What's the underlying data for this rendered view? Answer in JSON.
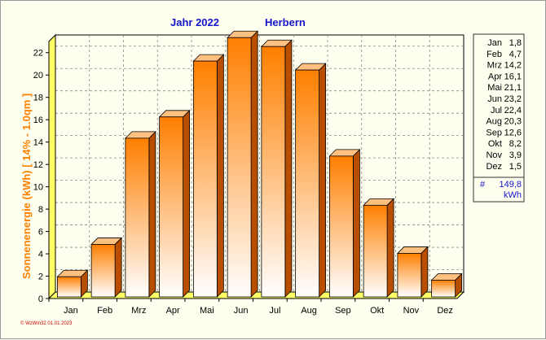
{
  "chart_data": {
    "type": "bar",
    "title": "Jahr  2022",
    "subtitle": "Herbern",
    "ylabel": "Sonnenenergie   (kWh)    [ 14% - 1.0qm ]",
    "xlabel": "",
    "categories": [
      "Jan",
      "Feb",
      "Mrz",
      "Apr",
      "Mai",
      "Jun",
      "Jul",
      "Aug",
      "Sep",
      "Okt",
      "Nov",
      "Dez"
    ],
    "values": [
      1.8,
      4.7,
      14.2,
      16.1,
      21.1,
      23.2,
      22.4,
      20.3,
      12.6,
      8.2,
      3.9,
      1.5
    ],
    "ylim": [
      0,
      23
    ],
    "yticks": [
      0,
      2,
      4,
      6,
      8,
      10,
      12,
      14,
      16,
      18,
      20,
      22
    ],
    "grid": true,
    "legend": {
      "position": "right",
      "entries": [
        {
          "label": "Jan",
          "value": "1,8"
        },
        {
          "label": "Feb",
          "value": "4,7"
        },
        {
          "label": "Mrz",
          "value": "14,2"
        },
        {
          "label": "Apr",
          "value": "16,1"
        },
        {
          "label": "Mai",
          "value": "21,1"
        },
        {
          "label": "Jun",
          "value": "23,2"
        },
        {
          "label": "Jul",
          "value": "22,4"
        },
        {
          "label": "Aug",
          "value": "20,3"
        },
        {
          "label": "Sep",
          "value": "12,6"
        },
        {
          "label": "Okt",
          "value": "8,2"
        },
        {
          "label": "Nov",
          "value": "3,9"
        },
        {
          "label": "Dez",
          "value": "1,5"
        }
      ],
      "total_symbol": "#",
      "total_value": "149,8",
      "total_unit": "kWh"
    },
    "colors": {
      "bar_top": "#ff7f00",
      "bar_bottom": "#ffffff",
      "bar_side": "#b84e00",
      "bar_cap": "#ffc080",
      "floor": "#ffff66"
    },
    "footer": "© WzWin32  01.01.2023"
  }
}
